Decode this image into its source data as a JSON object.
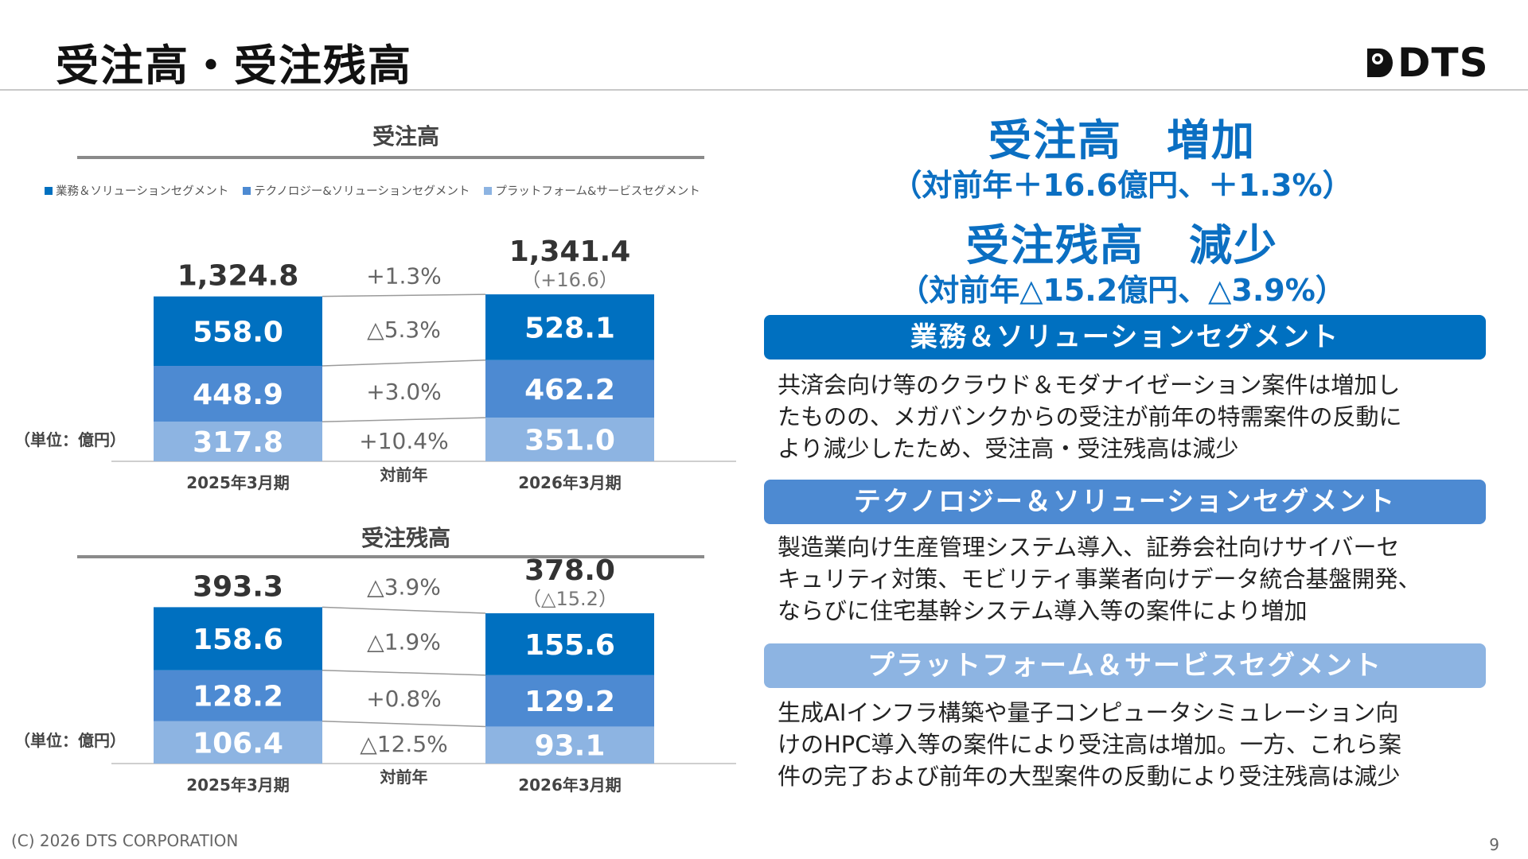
{
  "page": {
    "title": "受注高・受注残高",
    "copyright": "(C) 2026 DTS CORPORATION",
    "page_number": "9"
  },
  "logo": {
    "text": "DTS"
  },
  "colors": {
    "seg_business": "#0070c0",
    "seg_technology": "#4d8ad2",
    "seg_platform": "#8db4e2",
    "accent": "#0b6fc2"
  },
  "legend": {
    "items": [
      {
        "label": "業務＆ソリューションセグメント",
        "color": "#0070c0"
      },
      {
        "label": "テクノロジー&ソリューションセグメント",
        "color": "#4d8ad2"
      },
      {
        "label": "プラットフォーム&サービスセグメント",
        "color": "#8db4e2"
      }
    ]
  },
  "chart_data": [
    {
      "type": "bar",
      "title": "受注高",
      "unit_label": "（単位：億円）",
      "categories": [
        "2025年3月期",
        "2026年3月期"
      ],
      "middle_label": "対前年",
      "series": [
        {
          "name": "プラットフォーム&サービスセグメント",
          "color": "#8db4e2",
          "values": [
            317.8,
            351.0
          ],
          "labels": [
            "317.8",
            "351.0"
          ],
          "change": "+10.4%"
        },
        {
          "name": "テクノロジー&ソリューションセグメント",
          "color": "#4d8ad2",
          "values": [
            448.9,
            462.2
          ],
          "labels": [
            "448.9",
            "462.2"
          ],
          "change": "+3.0%"
        },
        {
          "name": "業務＆ソリューションセグメント",
          "color": "#0070c0",
          "values": [
            558.0,
            528.1
          ],
          "labels": [
            "558.0",
            "528.1"
          ],
          "change": "△5.3%"
        }
      ],
      "totals": [
        "1,324.8",
        "1,341.4"
      ],
      "total_change": "+1.3%",
      "total_diff": "（+16.6）"
    },
    {
      "type": "bar",
      "title": "受注残高",
      "unit_label": "（単位：億円）",
      "categories": [
        "2025年3月期",
        "2026年3月期"
      ],
      "middle_label": "対前年",
      "series": [
        {
          "name": "プラットフォーム&サービスセグメント",
          "color": "#8db4e2",
          "values": [
            106.4,
            93.1
          ],
          "labels": [
            "106.4",
            "93.1"
          ],
          "change": "△12.5%"
        },
        {
          "name": "テクノロジー&ソリューションセグメント",
          "color": "#4d8ad2",
          "values": [
            128.2,
            129.2
          ],
          "labels": [
            "128.2",
            "129.2"
          ],
          "change": "+0.8%"
        },
        {
          "name": "業務＆ソリューションセグメント",
          "color": "#0070c0",
          "values": [
            158.6,
            155.6
          ],
          "labels": [
            "158.6",
            "155.6"
          ],
          "change": "△1.9%"
        }
      ],
      "totals": [
        "393.3",
        "378.0"
      ],
      "total_change": "△3.9%",
      "total_diff": "（△15.2）"
    }
  ],
  "summary": {
    "orders_head": "受注高　増加",
    "orders_sub": "（対前年＋16.6億円、＋1.3%）",
    "backlog_head": "受注残高　減少",
    "backlog_sub": "（対前年△15.2億円、△3.9%）"
  },
  "segments": [
    {
      "title": "業務＆ソリューションセグメント",
      "color": "#0070c0",
      "lines": [
        "共済会向け等のクラウド＆モダナイゼーション案件は増加し",
        "たものの、メガバンクからの受注が前年の特需案件の反動に",
        "より減少したため、受注高・受注残高は減少"
      ]
    },
    {
      "title": "テクノロジー＆ソリューションセグメント",
      "color": "#4d8ad2",
      "lines": [
        "製造業向け生産管理システム導入、証券会社向けサイバーセ",
        "キュリティ対策、モビリティ事業者向けデータ統合基盤開発、",
        "ならびに住宅基幹システム導入等の案件により増加"
      ]
    },
    {
      "title": "プラットフォーム＆サービスセグメント",
      "color": "#8db4e2",
      "lines": [
        "生成AIインフラ構築や量子コンピュータシミュレーション向",
        "けのHPC導入等の案件により受注高は増加。一方、これら案",
        "件の完了および前年の大型案件の反動により受注残高は減少"
      ]
    }
  ]
}
